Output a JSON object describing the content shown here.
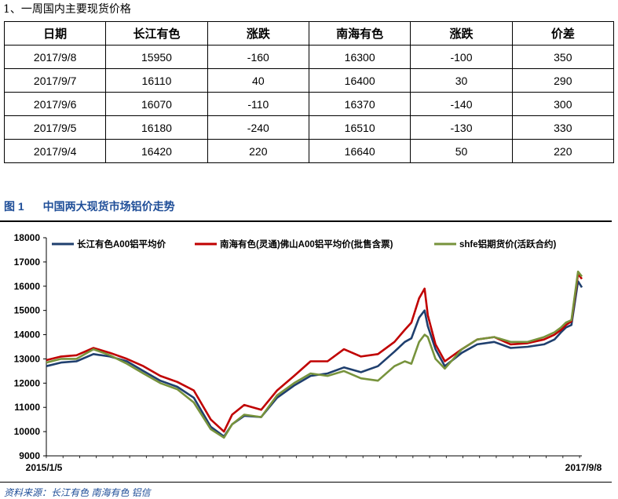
{
  "section_title": "1、一周国内主要现货价格",
  "table": {
    "headers": [
      "日期",
      "长江有色",
      "涨跌",
      "南海有色",
      "涨跌",
      "价差"
    ],
    "rows": [
      [
        "2017/9/8",
        "15950",
        "-160",
        "16300",
        "-100",
        "350"
      ],
      [
        "2017/9/7",
        "16110",
        "40",
        "16400",
        "30",
        "290"
      ],
      [
        "2017/9/6",
        "16070",
        "-110",
        "16370",
        "-140",
        "300"
      ],
      [
        "2017/9/5",
        "16180",
        "-240",
        "16510",
        "-130",
        "330"
      ],
      [
        "2017/9/4",
        "16420",
        "220",
        "16640",
        "50",
        "220"
      ]
    ]
  },
  "figure": {
    "number": "图 1",
    "title": "中国两大现货市场铝价走势"
  },
  "source": "资料来源：长江有色 南海有色 铝信",
  "chart_data": {
    "type": "line",
    "title": "",
    "xlabel": "",
    "ylabel": "",
    "x_tick_labels": [
      "2015/1/5",
      "2017/9/8"
    ],
    "x_range": [
      "2015/1/5",
      "2017/9/8"
    ],
    "ylim": [
      9000,
      18000
    ],
    "y_ticks": [
      9000,
      10000,
      11000,
      12000,
      13000,
      14000,
      15000,
      16000,
      17000,
      18000
    ],
    "grid": false,
    "legend_position": "top",
    "x_dates": [
      "2015/1/5",
      "2015/2/1",
      "2015/3/1",
      "2015/4/1",
      "2015/5/1",
      "2015/6/1",
      "2015/7/1",
      "2015/8/1",
      "2015/9/1",
      "2015/10/1",
      "2015/11/1",
      "2015/11/25",
      "2015/12/10",
      "2016/1/1",
      "2016/2/1",
      "2016/3/1",
      "2016/4/1",
      "2016/5/1",
      "2016/6/1",
      "2016/7/1",
      "2016/8/1",
      "2016/9/1",
      "2016/10/1",
      "2016/10/20",
      "2016/11/1",
      "2016/11/15",
      "2016/11/25",
      "2016/12/1",
      "2016/12/15",
      "2017/1/1",
      "2017/2/1",
      "2017/3/1",
      "2017/4/1",
      "2017/5/1",
      "2017/6/1",
      "2017/7/1",
      "2017/7/20",
      "2017/8/1",
      "2017/8/10",
      "2017/8/20",
      "2017/9/1",
      "2017/9/8"
    ],
    "series": [
      {
        "name": "长江有色A00铝平均价",
        "color": "#1f3f6e",
        "values": [
          12700,
          12850,
          12900,
          13200,
          13100,
          12900,
          12500,
          12100,
          11850,
          11400,
          10200,
          9800,
          10300,
          10650,
          10600,
          11400,
          11900,
          12300,
          12400,
          12650,
          12450,
          12700,
          13300,
          13700,
          13850,
          14700,
          15000,
          14350,
          13400,
          12700,
          13250,
          13600,
          13700,
          13450,
          13500,
          13600,
          13800,
          14100,
          14300,
          14400,
          16200,
          15950
        ],
        "line_color": "#1f3f6e"
      },
      {
        "name": "南海有色(灵通)佛山A00铝平均价(批售含票)",
        "color": "#c00000",
        "values": [
          12950,
          13100,
          13150,
          13450,
          13250,
          13000,
          12700,
          12300,
          12050,
          11700,
          10500,
          10000,
          10700,
          11100,
          10900,
          11700,
          12300,
          12900,
          12900,
          13400,
          13100,
          13200,
          13700,
          14200,
          14500,
          15500,
          15900,
          14800,
          13600,
          12900,
          13400,
          13800,
          13900,
          13600,
          13650,
          13800,
          14000,
          14200,
          14400,
          14550,
          16500,
          16300
        ],
        "line_color": "#c00000"
      },
      {
        "name": "shfe铝期货价(活跃合约)",
        "color": "#77933c",
        "values": [
          12850,
          13000,
          13000,
          13400,
          13150,
          12800,
          12400,
          12000,
          11750,
          11200,
          10100,
          9750,
          10300,
          10700,
          10600,
          11500,
          12000,
          12400,
          12300,
          12500,
          12200,
          12100,
          12700,
          12900,
          12800,
          13700,
          14000,
          13900,
          13000,
          12600,
          13400,
          13800,
          13900,
          13700,
          13700,
          13900,
          14100,
          14300,
          14500,
          14600,
          16600,
          16400
        ],
        "line_color": "#77933c"
      }
    ]
  }
}
